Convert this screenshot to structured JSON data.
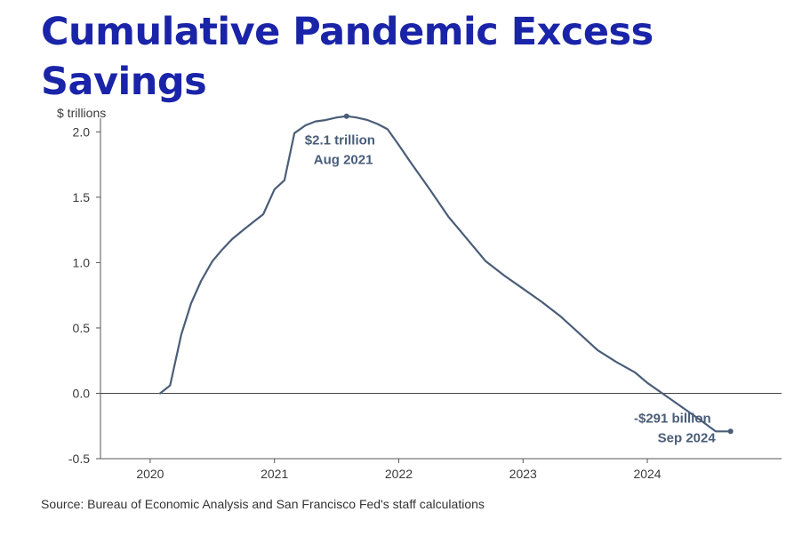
{
  "title": "Cumulative Pandemic Excess Savings",
  "source": "Source: Bureau of Economic Analysis and San Francisco Fed's staff calculations",
  "colors": {
    "title": "#1a24a8",
    "line": "#4a5d78",
    "annotation": "#4a5d78",
    "axis": "#555555"
  },
  "chart_data": {
    "type": "line",
    "title": "Cumulative Pandemic Excess Savings",
    "ylabel": "$ trillions",
    "xlabel": "",
    "xlim": [
      2019.6,
      2025.08
    ],
    "ylim": [
      -0.5,
      2.05
    ],
    "grid": false,
    "x_ticks": [
      2020,
      2021,
      2022,
      2023,
      2024
    ],
    "x_tick_labels": [
      "2020",
      "2021",
      "2022",
      "2023",
      "2024"
    ],
    "y_ticks": [
      -0.5,
      0.0,
      0.5,
      1.0,
      1.5,
      2.0
    ],
    "y_tick_labels": [
      "-0.5",
      "0.0",
      "0.5",
      "1.0",
      "1.5",
      "2.0"
    ],
    "series": [
      {
        "name": "Cumulative pandemic excess savings",
        "x": [
          2020.08,
          2020.16,
          2020.25,
          2020.33,
          2020.41,
          2020.5,
          2020.58,
          2020.66,
          2020.75,
          2020.83,
          2020.91,
          2021.0,
          2021.08,
          2021.16,
          2021.25,
          2021.33,
          2021.41,
          2021.5,
          2021.58,
          2021.66,
          2021.75,
          2021.83,
          2021.91,
          2022.0,
          2022.1,
          2022.25,
          2022.4,
          2022.55,
          2022.7,
          2022.85,
          2023.0,
          2023.15,
          2023.3,
          2023.45,
          2023.6,
          2023.75,
          2023.9,
          2024.0,
          2024.15,
          2024.3,
          2024.42,
          2024.55,
          2024.67
        ],
        "values": [
          0.0,
          0.06,
          0.45,
          0.69,
          0.86,
          1.01,
          1.1,
          1.18,
          1.25,
          1.31,
          1.37,
          1.56,
          1.63,
          1.99,
          2.05,
          2.08,
          2.09,
          2.11,
          2.12,
          2.11,
          2.09,
          2.06,
          2.02,
          1.9,
          1.76,
          1.56,
          1.35,
          1.18,
          1.01,
          0.9,
          0.8,
          0.7,
          0.59,
          0.46,
          0.33,
          0.24,
          0.16,
          0.08,
          -0.02,
          -0.12,
          -0.2,
          -0.291,
          -0.291
        ]
      }
    ],
    "annotations": [
      {
        "line1": "$2.1 trillion",
        "line2": "Aug 2021",
        "x": 2021.58,
        "y": 2.12
      },
      {
        "line1": "-$291 billion",
        "line2": "Sep 2024",
        "x": 2024.67,
        "y": -0.291
      }
    ]
  }
}
